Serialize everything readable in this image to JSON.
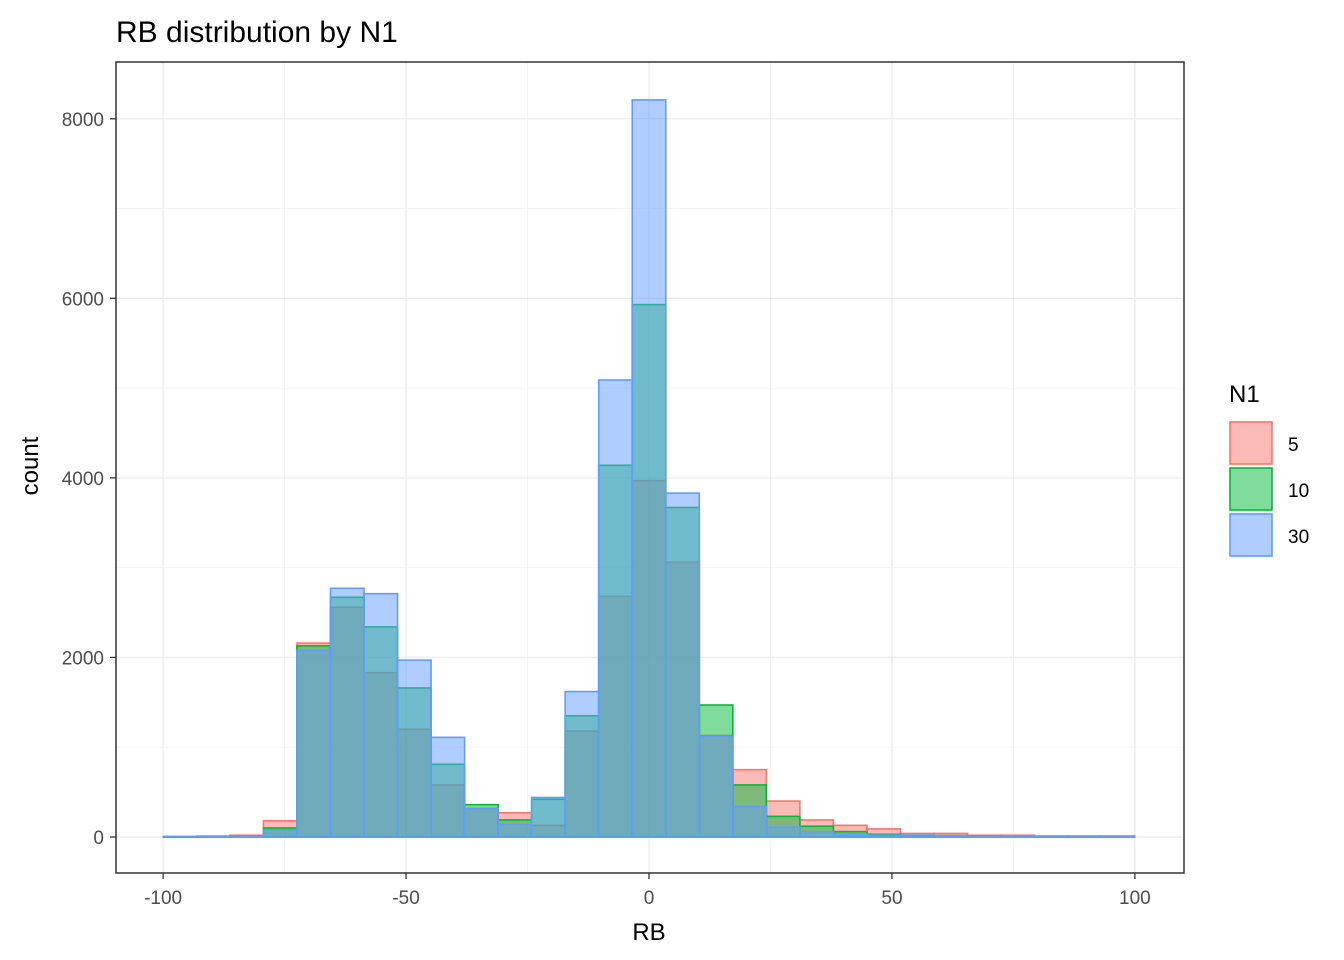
{
  "chart_data": {
    "type": "bar",
    "subtype": "overlapping-histogram",
    "title": "RB distribution by N1",
    "xlabel": "RB",
    "ylabel": "count",
    "xlim": [
      -100,
      100
    ],
    "ylim": [
      0,
      8200
    ],
    "x_ticks": [
      -100,
      -50,
      0,
      50,
      100
    ],
    "x_tick_labels": [
      "-100",
      "-50",
      "0",
      "50",
      "100"
    ],
    "y_ticks": [
      0,
      2000,
      4000,
      6000,
      8000
    ],
    "y_tick_labels": [
      "0",
      "2000",
      "4000",
      "6000",
      "8000"
    ],
    "grid": true,
    "bin_centers": [
      -96.5,
      -89.6,
      -82.8,
      -75.9,
      -69.0,
      -62.1,
      -55.2,
      -48.3,
      -41.4,
      -34.5,
      -27.6,
      -20.7,
      -13.8,
      -6.9,
      0.0,
      6.9,
      13.8,
      20.7,
      27.6,
      34.5,
      41.4,
      48.3,
      55.2,
      62.1,
      69.0,
      75.9,
      82.8,
      89.6,
      96.5
    ],
    "bin_width": 6.9,
    "legend": {
      "title": "N1",
      "position": "right"
    },
    "series": [
      {
        "name": "5",
        "fill": "#F8766D",
        "values": [
          5,
          10,
          20,
          180,
          2160,
          2560,
          1830,
          1200,
          580,
          320,
          270,
          130,
          1180,
          2680,
          3970,
          3060,
          1130,
          750,
          400,
          190,
          130,
          90,
          40,
          40,
          20,
          20,
          10,
          10,
          10
        ]
      },
      {
        "name": "10",
        "fill": "#00BA38",
        "values": [
          3,
          5,
          10,
          100,
          2130,
          2670,
          2340,
          1660,
          810,
          360,
          190,
          420,
          1350,
          4140,
          5930,
          3670,
          1470,
          580,
          230,
          120,
          60,
          30,
          20,
          15,
          10,
          5,
          5,
          5,
          5
        ]
      },
      {
        "name": "30",
        "fill": "#619CFF",
        "values": [
          5,
          5,
          10,
          80,
          2080,
          2770,
          2710,
          1970,
          1110,
          320,
          140,
          440,
          1620,
          5090,
          8210,
          3830,
          1120,
          340,
          110,
          60,
          30,
          20,
          20,
          15,
          10,
          10,
          10,
          10,
          10
        ]
      }
    ]
  }
}
